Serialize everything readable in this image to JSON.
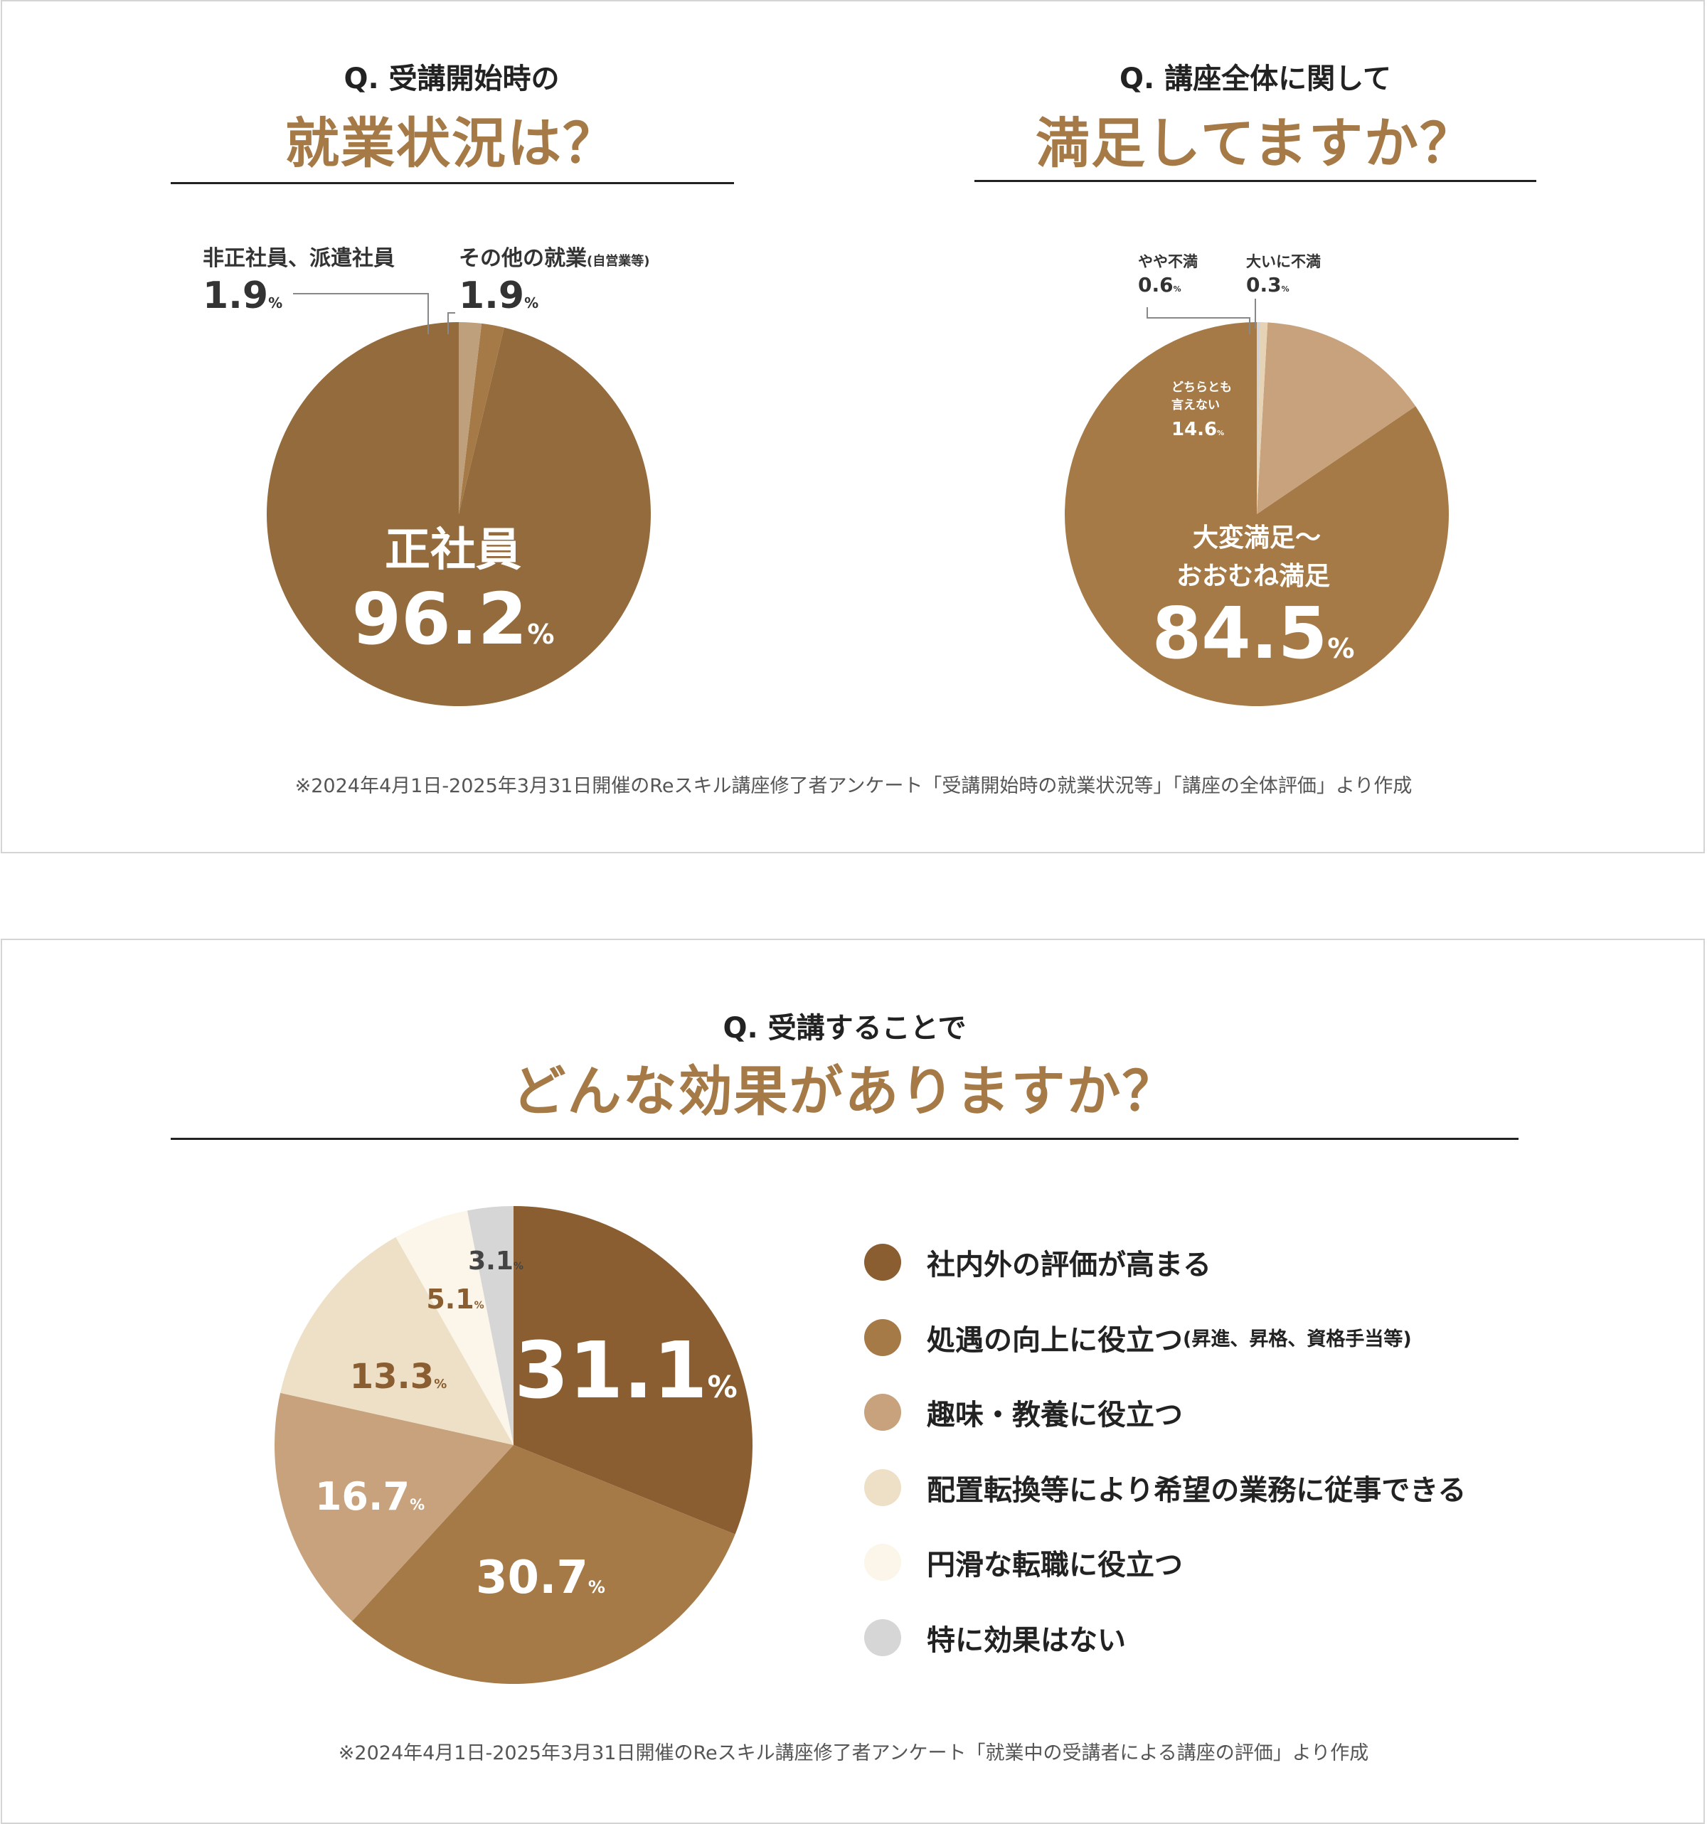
{
  "top_panel": {
    "left": {
      "question": "Q. 受講開始時の",
      "headline": "就業状況は？"
    },
    "right": {
      "question": "Q. 講座全体に関して",
      "headline": "満足してますか？"
    },
    "source_note": "※2024年4月1日-2025年3月31日開催のReスキル講座修了者アンケート「受講開始時の就業状況等」「講座の全体評価」より作成"
  },
  "bottom_panel": {
    "question": "Q. 受講することで",
    "headline": "どんな効果がありますか？",
    "source_note": "※2024年4月1日-2025年3月31日開催のReスキル講座修了者アンケート「就業中の受講者による講座の評価」より作成"
  },
  "percent_sign": "%",
  "chart_data": [
    {
      "type": "pie",
      "title": "就業状況は？",
      "slices": [
        {
          "label": "正社員",
          "value": 96.2,
          "value_text": "96.2",
          "color": "#946b3d"
        },
        {
          "label": "非正社員、派遣社員",
          "value": 1.9,
          "value_text": "1.9",
          "color": "#a57a47"
        },
        {
          "label": "その他の就業",
          "label_note": "(自営業等)",
          "value": 1.9,
          "value_text": "1.9",
          "color": "#bfa07d"
        }
      ]
    },
    {
      "type": "pie",
      "title": "満足してますか？",
      "slices": [
        {
          "label": "大変満足～",
          "label2": "おおむね満足",
          "value": 84.5,
          "value_text": "84.5",
          "color": "#a57a47"
        },
        {
          "label": "どちらとも",
          "label2": "言えない",
          "value": 14.6,
          "value_text": "14.6",
          "color": "#c7a27c"
        },
        {
          "label": "やや不満",
          "value": 0.6,
          "value_text": "0.6",
          "color": "#e6d3b5"
        },
        {
          "label": "大いに不満",
          "value": 0.3,
          "value_text": "0.3",
          "color": "#d2d2d2"
        }
      ]
    },
    {
      "type": "pie",
      "title": "どんな効果がありますか？",
      "legend": "right",
      "slices": [
        {
          "label": "社内外の評価が高まる",
          "value": 31.1,
          "value_text": "31.1",
          "color": "#8a5e30"
        },
        {
          "label": "処遇の向上に役立つ",
          "label_note": "(昇進、昇格、資格手当等)",
          "value": 30.7,
          "value_text": "30.7",
          "color": "#a57a47"
        },
        {
          "label": "趣味・教養に役立つ",
          "value": 16.7,
          "value_text": "16.7",
          "color": "#c7a27c"
        },
        {
          "label": "配置転換等により希望の業務に従事できる",
          "value": 13.3,
          "value_text": "13.3",
          "color": "#ede0c6"
        },
        {
          "label": "円滑な転職に役立つ",
          "value": 5.1,
          "value_text": "5.1",
          "color": "#fbf6e9"
        },
        {
          "label": "特に効果はない",
          "value": 3.1,
          "value_text": "3.1",
          "color": "#d6d6d6"
        }
      ]
    }
  ]
}
